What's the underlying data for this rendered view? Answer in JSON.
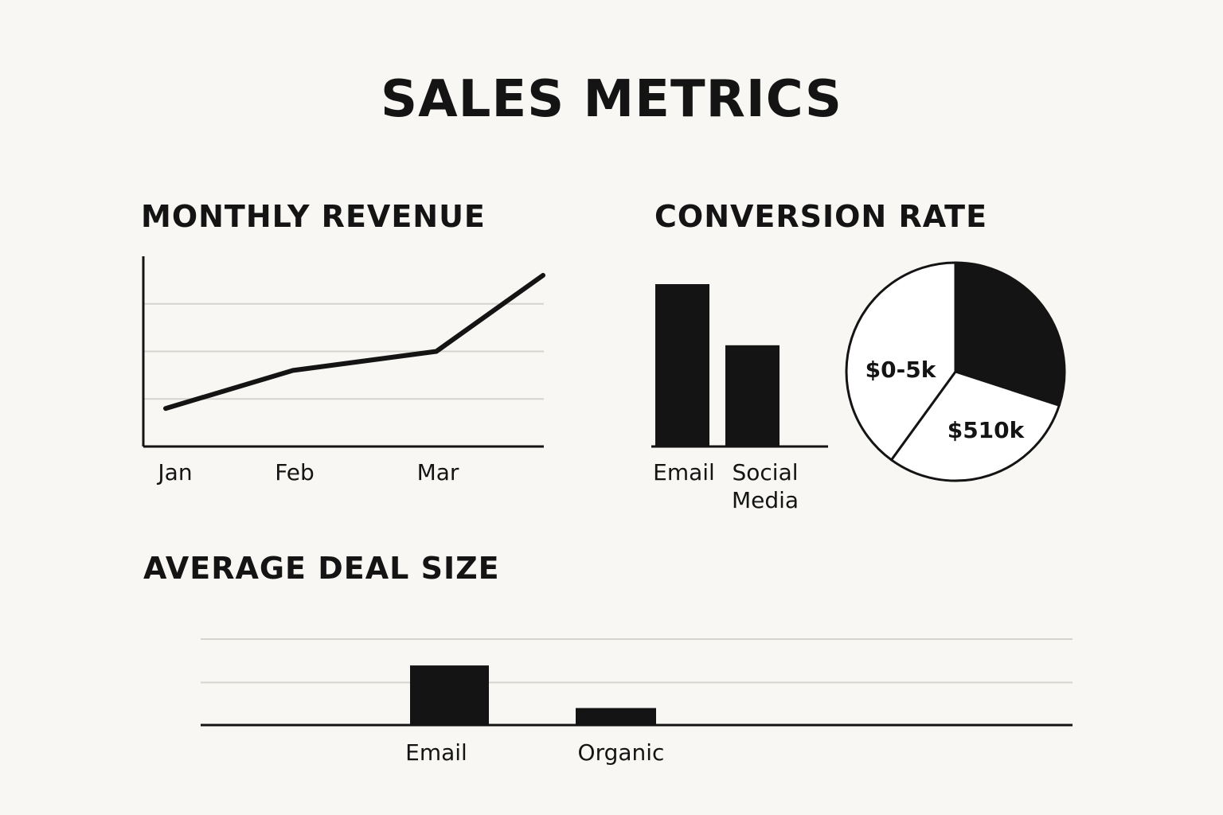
{
  "page": {
    "title": "SALES METRICS"
  },
  "colors": {
    "background": "#f8f7f3",
    "ink": "#141414",
    "grid": "#d6d4cf",
    "pie_light": "#ffffff"
  },
  "chart_data": [
    {
      "id": "monthly_revenue",
      "type": "line",
      "title": "MONTHLY REVENUE",
      "x": [
        "Jan",
        "Feb",
        "Mar",
        ""
      ],
      "values": [
        0.8,
        1.6,
        2.0,
        3.6
      ],
      "ylim": [
        0,
        4
      ],
      "xlabel": "",
      "ylabel": "",
      "grid": true
    },
    {
      "id": "conversion_rate_bar",
      "type": "bar",
      "title": "CONVERSION RATE",
      "categories": [
        "Email",
        "Social Media"
      ],
      "values": [
        0.85,
        0.53
      ],
      "ylim": [
        0,
        1
      ],
      "grid": false
    },
    {
      "id": "conversion_rate_pie",
      "type": "pie",
      "slices": [
        {
          "label": "",
          "value": 0.3,
          "color": "#141414"
        },
        {
          "label": "$510k",
          "value": 0.3,
          "color": "#ffffff"
        },
        {
          "label": "$0-5k",
          "value": 0.4,
          "color": "#ffffff"
        }
      ]
    },
    {
      "id": "average_deal_size",
      "type": "bar",
      "title": "AVERAGE DEAL SIZE",
      "categories": [
        "Email",
        "Organic"
      ],
      "values": [
        1.4,
        0.4
      ],
      "ylim": [
        0,
        2
      ],
      "grid": true
    }
  ]
}
